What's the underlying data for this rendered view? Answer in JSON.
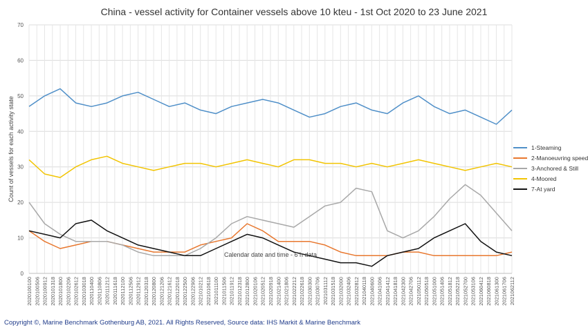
{
  "chart_data": {
    "type": "line",
    "title": "China - vessel activity for Container vessels above 10 kteu - 1st Oct 2020 to 23 June 2021",
    "xlabel": "Calendar date and time - 6 h data",
    "ylabel": "Count of vessels for each activity state",
    "ylim": [
      0,
      70
    ],
    "yticks": [
      0,
      10,
      20,
      30,
      40,
      50,
      60,
      70
    ],
    "grid": true,
    "legend_position": "right",
    "x_tick_labels": [
      "2020100100",
      "2020100506",
      "2020100912",
      "2020101318",
      "2020101800",
      "2020102206",
      "2020102612",
      "2020103018",
      "2020110400",
      "2020110806",
      "2020111212",
      "2020111618",
      "2020112100",
      "2020112506",
      "2020112912",
      "2020120318",
      "2020120800",
      "2020121206",
      "2020121612",
      "2020122018",
      "2020122500",
      "2020122906",
      "2021010212",
      "2021010618",
      "2021011100",
      "2021011506",
      "2021011912",
      "2021012318",
      "2021012800",
      "2021020106",
      "2021020512",
      "2021020918",
      "2021021400",
      "2021021806",
      "2021022212",
      "2021022618",
      "2021030300",
      "2021030706",
      "2021031112",
      "2021031518",
      "2021032000",
      "2021032406",
      "2021032812",
      "2021040118",
      "2021040600",
      "2021041006",
      "2021041412",
      "2021041818",
      "2021042300",
      "2021042706",
      "2021050112",
      "2021050518",
      "2021051000",
      "2021051406",
      "2021051812",
      "2021052218",
      "2021052700",
      "2021053106",
      "2021060412",
      "2021060818",
      "2021061300",
      "2021061706",
      "2021062112"
    ],
    "series": [
      {
        "name": "1-Steaming",
        "color": "#4f8fc8",
        "x": [
          0,
          2,
          4,
          6,
          8,
          10,
          12,
          14,
          16,
          18,
          20,
          22,
          24,
          26,
          28,
          30,
          32,
          34,
          36,
          38,
          40,
          42,
          44,
          46,
          48,
          50,
          52,
          54,
          56,
          58,
          60,
          62
        ],
        "values": [
          47,
          50,
          52,
          48,
          47,
          48,
          50,
          51,
          49,
          47,
          48,
          46,
          45,
          47,
          48,
          49,
          48,
          46,
          44,
          45,
          47,
          48,
          46,
          45,
          48,
          50,
          47,
          45,
          46,
          44,
          42,
          46
        ]
      },
      {
        "name": "2-Manoeuvring speed",
        "color": "#e8772e",
        "x": [
          0,
          2,
          4,
          6,
          8,
          10,
          12,
          14,
          16,
          18,
          20,
          22,
          24,
          26,
          28,
          30,
          32,
          34,
          36,
          38,
          40,
          42,
          44,
          46,
          48,
          50,
          52,
          54,
          56,
          58,
          60,
          62
        ],
        "values": [
          12,
          9,
          7,
          8,
          9,
          9,
          8,
          7,
          6,
          6,
          6,
          8,
          9,
          10,
          14,
          12,
          9,
          9,
          9,
          8,
          6,
          5,
          5,
          5,
          6,
          6,
          5,
          5,
          5,
          5,
          5,
          6
        ]
      },
      {
        "name": "3-Anchored & Still",
        "color": "#a8a8a8",
        "x": [
          0,
          2,
          4,
          6,
          8,
          10,
          12,
          14,
          16,
          18,
          20,
          22,
          24,
          26,
          28,
          30,
          32,
          34,
          36,
          38,
          40,
          42,
          44,
          46,
          48,
          50,
          52,
          54,
          56,
          58,
          60,
          62
        ],
        "values": [
          20,
          14,
          11,
          9,
          9,
          9,
          8,
          6,
          5,
          5,
          5,
          7,
          10,
          14,
          16,
          15,
          14,
          13,
          16,
          19,
          20,
          24,
          23,
          12,
          10,
          12,
          16,
          21,
          25,
          22,
          17,
          12
        ]
      },
      {
        "name": "4-Moored",
        "color": "#f2c400",
        "x": [
          0,
          2,
          4,
          6,
          8,
          10,
          12,
          14,
          16,
          18,
          20,
          22,
          24,
          26,
          28,
          30,
          32,
          34,
          36,
          38,
          40,
          42,
          44,
          46,
          48,
          50,
          52,
          54,
          56,
          58,
          60,
          62
        ],
        "values": [
          32,
          28,
          27,
          30,
          32,
          33,
          31,
          30,
          29,
          30,
          31,
          31,
          30,
          31,
          32,
          31,
          30,
          32,
          32,
          31,
          31,
          30,
          31,
          30,
          31,
          32,
          31,
          30,
          29,
          30,
          31,
          30
        ]
      },
      {
        "name": "7-At yard",
        "color": "#111111",
        "x": [
          0,
          2,
          4,
          6,
          8,
          10,
          12,
          14,
          16,
          18,
          20,
          22,
          24,
          26,
          28,
          30,
          32,
          34,
          36,
          38,
          40,
          42,
          44,
          46,
          48,
          50,
          52,
          54,
          56,
          58,
          60,
          62
        ],
        "values": [
          12,
          11,
          10,
          14,
          15,
          12,
          10,
          8,
          7,
          6,
          5,
          5,
          7,
          9,
          11,
          10,
          8,
          6,
          5,
          4,
          3,
          3,
          2,
          5,
          6,
          7,
          10,
          12,
          14,
          9,
          6,
          5
        ]
      }
    ]
  },
  "copyright": "Copyright ©, Marine Benchmark Gothenburg AB, 2021. All Rights Reserved, Source data: IHS Markit & Marine Benchmark"
}
